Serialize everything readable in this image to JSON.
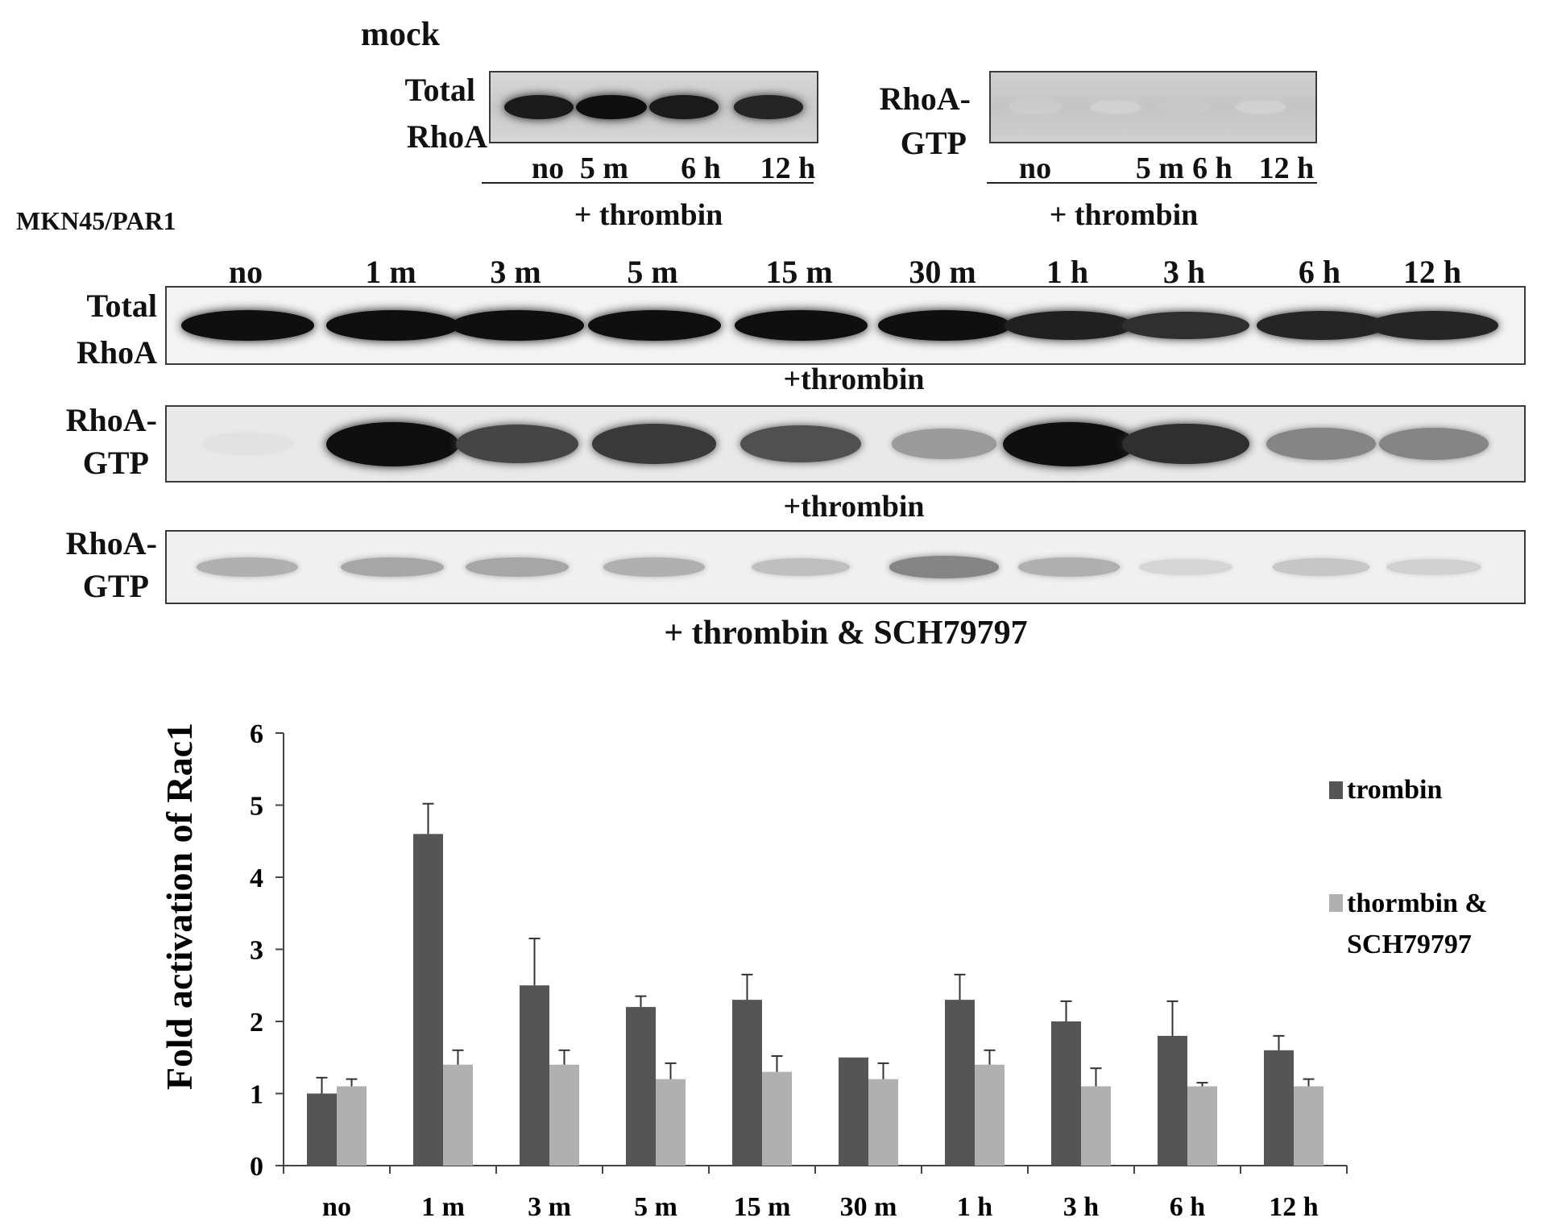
{
  "figure": {
    "mock_label": "mock",
    "cell_line_label": "MKN45/PAR1",
    "mock_blots": [
      {
        "label_line1": "Total",
        "label_line2": "RhoA",
        "lanes": [
          "no",
          "5 m",
          "6 h",
          "12 h"
        ],
        "treatment": "+ thrombin",
        "band_intensity": [
          0.95,
          1.0,
          0.95,
          0.9
        ]
      },
      {
        "label_line1": "RhoA-",
        "label_line2": "GTP",
        "lanes": [
          "no",
          "5 m",
          "6 h",
          "12 h"
        ],
        "treatment": "+ thrombin",
        "band_intensity": [
          0.12,
          0.1,
          0.14,
          0.1
        ]
      }
    ],
    "main_lanes": [
      "no",
      "1 m",
      "3 m",
      "5 m",
      "15 m",
      "30 m",
      "1 h",
      "3 h",
      "6 h",
      "12 h"
    ],
    "main_blots": [
      {
        "label_line1": "Total",
        "label_line2": "RhoA",
        "treatment": "+thrombin",
        "band_intensity": [
          1.0,
          1.0,
          1.0,
          1.0,
          1.0,
          1.0,
          0.92,
          0.85,
          0.9,
          0.9
        ]
      },
      {
        "label_line1": "RhoA-",
        "label_line2": "GTP",
        "treatment": "+thrombin",
        "band_intensity": [
          0.02,
          1.0,
          0.75,
          0.8,
          0.7,
          0.35,
          1.0,
          0.85,
          0.45,
          0.45
        ]
      },
      {
        "label_line1": "RhoA-",
        "label_line2": "GTP",
        "treatment": "+ thrombin & SCH79797",
        "band_intensity": [
          0.25,
          0.3,
          0.3,
          0.25,
          0.18,
          0.45,
          0.25,
          0.08,
          0.15,
          0.1
        ]
      }
    ]
  },
  "chart_data": {
    "type": "bar",
    "ylabel": "Fold activation of Rac1",
    "categories": [
      "no",
      "1 m",
      "3 m",
      "5 m",
      "15 m",
      "30 m",
      "1 h",
      "3 h",
      "6 h",
      "12 h"
    ],
    "ylim": [
      0,
      6
    ],
    "yticks": [
      "0",
      "1",
      "2",
      "3",
      "4",
      "5",
      "6"
    ],
    "legend_position": "right",
    "series": [
      {
        "name": "trombin",
        "color": "#555555",
        "values": [
          1.0,
          4.6,
          2.5,
          2.2,
          2.3,
          1.5,
          2.3,
          2.0,
          1.8,
          1.6
        ],
        "errors": [
          0.22,
          0.42,
          0.65,
          0.15,
          0.35,
          0.0,
          0.35,
          0.28,
          0.48,
          0.2
        ]
      },
      {
        "name": "thormbin & SCH79797",
        "color": "#b0b0b0",
        "values": [
          1.1,
          1.4,
          1.4,
          1.2,
          1.3,
          1.2,
          1.4,
          1.1,
          1.1,
          1.1
        ],
        "errors": [
          0.1,
          0.2,
          0.2,
          0.22,
          0.22,
          0.22,
          0.2,
          0.25,
          0.05,
          0.1
        ]
      }
    ]
  }
}
